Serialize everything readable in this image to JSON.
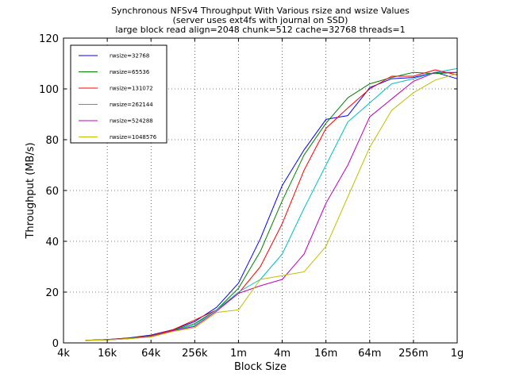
{
  "chart_data": {
    "type": "line",
    "title_lines": [
      "Synchronous NFSv4 Throughput With Various rsize and wsize Values",
      "(server uses ext4fs with journal on SSD)",
      "large block read align=2048 chunk=512 cache=32768 threads=1"
    ],
    "xlabel": "Block Size",
    "ylabel": "Throughput (MB/s)",
    "x_scale": "log2",
    "xlim": [
      4096,
      1073741824
    ],
    "ylim": [
      0,
      120
    ],
    "grid": true,
    "legend_position": "top-left",
    "x_ticks": [
      {
        "value": 4096,
        "label": "4k"
      },
      {
        "value": 16384,
        "label": "16k"
      },
      {
        "value": 65536,
        "label": "64k"
      },
      {
        "value": 262144,
        "label": "256k"
      },
      {
        "value": 1048576,
        "label": "1m"
      },
      {
        "value": 4194304,
        "label": "4m"
      },
      {
        "value": 16777216,
        "label": "16m"
      },
      {
        "value": 67108864,
        "label": "64m"
      },
      {
        "value": 268435456,
        "label": "256m"
      },
      {
        "value": 1073741824,
        "label": "1g"
      }
    ],
    "y_ticks": [
      {
        "value": 0,
        "label": "0"
      },
      {
        "value": 20,
        "label": "20"
      },
      {
        "value": 40,
        "label": "40"
      },
      {
        "value": 60,
        "label": "60"
      },
      {
        "value": 80,
        "label": "80"
      },
      {
        "value": 100,
        "label": "100"
      },
      {
        "value": 120,
        "label": "120"
      }
    ],
    "x": [
      8192,
      16384,
      32768,
      65536,
      131072,
      262144,
      524288,
      1048576,
      2097152,
      4194304,
      8388608,
      16777216,
      33554432,
      67108864,
      134217728,
      268435456,
      536870912,
      1073741824
    ],
    "series": [
      {
        "name": "rwsize=32768",
        "color": "#0000ff",
        "values": [
          1.0,
          1.3,
          2.0,
          3.1,
          5.2,
          8.4,
          14.0,
          23.5,
          41.0,
          62.0,
          76.0,
          88.0,
          89.5,
          100.5,
          104.0,
          104.5,
          106.5,
          104.0
        ]
      },
      {
        "name": "rwsize=65536",
        "color": "#008000",
        "values": [
          1.0,
          1.3,
          1.9,
          2.9,
          5.0,
          7.6,
          13.0,
          21.5,
          36.0,
          56.0,
          74.0,
          86.5,
          96.5,
          102.0,
          104.5,
          106.5,
          106.0,
          106.5
        ]
      },
      {
        "name": "rwsize=131072",
        "color": "#ff0000",
        "values": [
          1.0,
          1.3,
          1.8,
          2.8,
          5.2,
          9.0,
          13.0,
          19.5,
          30.0,
          47.0,
          68.0,
          84.5,
          92.5,
          100.0,
          105.0,
          105.0,
          107.5,
          105.5
        ]
      },
      {
        "name": "rwsize=262144",
        "color": "#00bfbf",
        "values": [
          1.0,
          1.2,
          1.7,
          2.5,
          4.8,
          7.0,
          13.0,
          20.0,
          25.0,
          35.0,
          53.0,
          70.0,
          87.0,
          94.5,
          102.0,
          104.0,
          106.5,
          108.0
        ]
      },
      {
        "name": "rwsize=524288",
        "color": "#bf00bf",
        "values": [
          1.0,
          1.2,
          1.7,
          2.4,
          4.8,
          6.5,
          12.5,
          19.5,
          22.5,
          25.0,
          35.0,
          55.0,
          70.0,
          89.0,
          96.0,
          103.0,
          106.5,
          106.5
        ]
      },
      {
        "name": "rwsize=1048576",
        "color": "#bfbf00",
        "values": [
          1.0,
          1.2,
          1.7,
          2.3,
          4.5,
          6.0,
          12.0,
          13.0,
          25.0,
          26.5,
          28.0,
          38.0,
          57.5,
          77.0,
          91.5,
          98.5,
          103.5,
          106.0
        ]
      }
    ]
  }
}
